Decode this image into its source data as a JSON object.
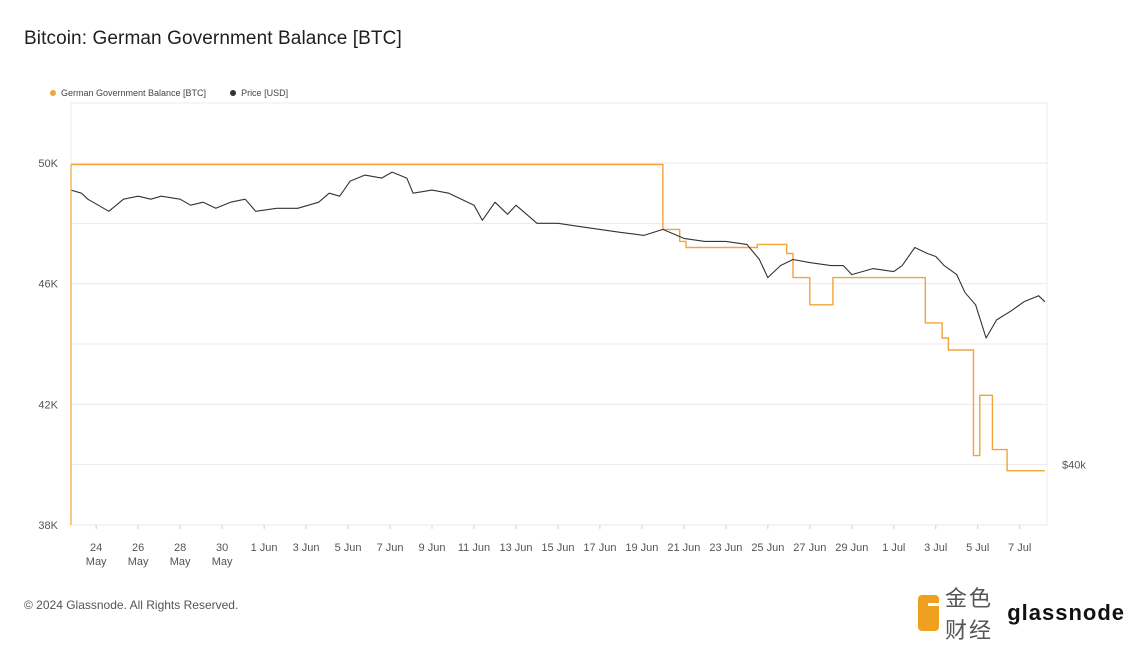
{
  "page": {
    "title": "Bitcoin: German Government Balance [BTC]",
    "copyright": "© 2024 Glassnode. All Rights Reserved.",
    "brand_wordmark": "glassnode",
    "watermark_text": "金色财经"
  },
  "chart_data": {
    "type": "line",
    "title": "Bitcoin: German Government Balance [BTC]",
    "legend": [
      {
        "name": "German Government Balance [BTC]",
        "color": "#f2a33a"
      },
      {
        "name": "Price [USD]",
        "color": "#333333"
      }
    ],
    "legend_placement": "top-left",
    "grid": true,
    "y_left": {
      "ticks": [
        {
          "value": 38000,
          "label": "38K"
        },
        {
          "value": 42000,
          "label": "42K"
        },
        {
          "value": 46000,
          "label": "46K"
        },
        {
          "value": 50000,
          "label": "50K"
        }
      ],
      "range": [
        38000,
        50000
      ]
    },
    "y_right": {
      "ticks": [
        {
          "value": 40000,
          "label": "$40k"
        }
      ]
    },
    "x": {
      "range_day_index": [
        0,
        46.5
      ],
      "ticks": [
        {
          "day": 1.2,
          "line1": "24",
          "line2": "May"
        },
        {
          "day": 3.2,
          "line1": "26",
          "line2": "May"
        },
        {
          "day": 5.2,
          "line1": "28",
          "line2": "May"
        },
        {
          "day": 7.2,
          "line1": "30",
          "line2": "May"
        },
        {
          "day": 9.2,
          "line1": "1 Jun",
          "line2": ""
        },
        {
          "day": 11.2,
          "line1": "3 Jun",
          "line2": ""
        },
        {
          "day": 13.2,
          "line1": "5 Jun",
          "line2": ""
        },
        {
          "day": 15.2,
          "line1": "7 Jun",
          "line2": ""
        },
        {
          "day": 17.2,
          "line1": "9 Jun",
          "line2": ""
        },
        {
          "day": 19.2,
          "line1": "11 Jun",
          "line2": ""
        },
        {
          "day": 21.2,
          "line1": "13 Jun",
          "line2": ""
        },
        {
          "day": 23.2,
          "line1": "15 Jun",
          "line2": ""
        },
        {
          "day": 25.2,
          "line1": "17 Jun",
          "line2": ""
        },
        {
          "day": 27.2,
          "line1": "19 Jun",
          "line2": ""
        },
        {
          "day": 29.2,
          "line1": "21 Jun",
          "line2": ""
        },
        {
          "day": 31.2,
          "line1": "23 Jun",
          "line2": ""
        },
        {
          "day": 33.2,
          "line1": "25 Jun",
          "line2": ""
        },
        {
          "day": 35.2,
          "line1": "27 Jun",
          "line2": ""
        },
        {
          "day": 37.2,
          "line1": "29 Jun",
          "line2": ""
        },
        {
          "day": 39.2,
          "line1": "1 Jul",
          "line2": ""
        },
        {
          "day": 41.2,
          "line1": "3 Jul",
          "line2": ""
        },
        {
          "day": 43.2,
          "line1": "5 Jul",
          "line2": ""
        },
        {
          "day": 45.2,
          "line1": "7 Jul",
          "line2": ""
        }
      ]
    },
    "series": [
      {
        "name": "German Government Balance [BTC]",
        "color": "#f2a33a",
        "shape": "step",
        "points": [
          [
            0.0,
            49950
          ],
          [
            28.2,
            49950
          ],
          [
            28.2,
            47800
          ],
          [
            29.0,
            47800
          ],
          [
            29.0,
            47400
          ],
          [
            29.3,
            47400
          ],
          [
            29.3,
            47200
          ],
          [
            32.7,
            47200
          ],
          [
            32.7,
            47300
          ],
          [
            34.1,
            47300
          ],
          [
            34.1,
            47000
          ],
          [
            34.4,
            47000
          ],
          [
            34.4,
            46200
          ],
          [
            35.2,
            46200
          ],
          [
            35.2,
            45300
          ],
          [
            36.3,
            45300
          ],
          [
            36.3,
            46200
          ],
          [
            40.7,
            46200
          ],
          [
            40.7,
            44700
          ],
          [
            41.5,
            44700
          ],
          [
            41.5,
            44200
          ],
          [
            41.8,
            44200
          ],
          [
            41.8,
            43800
          ],
          [
            43.0,
            43800
          ],
          [
            43.0,
            40300
          ],
          [
            43.3,
            40300
          ],
          [
            43.3,
            42300
          ],
          [
            43.9,
            42300
          ],
          [
            43.9,
            40500
          ],
          [
            44.6,
            40500
          ],
          [
            44.6,
            39800
          ],
          [
            46.4,
            39800
          ]
        ]
      },
      {
        "name": "Price [USD]",
        "color": "#333333",
        "shape": "line",
        "points": [
          [
            0.0,
            49100
          ],
          [
            0.5,
            49000
          ],
          [
            0.8,
            48800
          ],
          [
            1.3,
            48600
          ],
          [
            1.8,
            48400
          ],
          [
            2.5,
            48800
          ],
          [
            3.2,
            48900
          ],
          [
            3.8,
            48800
          ],
          [
            4.3,
            48900
          ],
          [
            5.2,
            48800
          ],
          [
            5.7,
            48600
          ],
          [
            6.3,
            48700
          ],
          [
            6.9,
            48500
          ],
          [
            7.6,
            48700
          ],
          [
            8.3,
            48800
          ],
          [
            8.8,
            48400
          ],
          [
            9.8,
            48500
          ],
          [
            10.8,
            48500
          ],
          [
            11.8,
            48700
          ],
          [
            12.3,
            49000
          ],
          [
            12.8,
            48900
          ],
          [
            13.3,
            49400
          ],
          [
            14.0,
            49600
          ],
          [
            14.8,
            49500
          ],
          [
            15.3,
            49700
          ],
          [
            16.0,
            49500
          ],
          [
            16.3,
            49000
          ],
          [
            17.2,
            49100
          ],
          [
            18.0,
            49000
          ],
          [
            19.2,
            48600
          ],
          [
            19.6,
            48100
          ],
          [
            20.2,
            48700
          ],
          [
            20.8,
            48300
          ],
          [
            21.2,
            48600
          ],
          [
            22.2,
            48000
          ],
          [
            23.2,
            48000
          ],
          [
            24.2,
            47900
          ],
          [
            25.2,
            47800
          ],
          [
            26.2,
            47700
          ],
          [
            27.3,
            47600
          ],
          [
            28.2,
            47800
          ],
          [
            29.2,
            47500
          ],
          [
            30.2,
            47400
          ],
          [
            31.2,
            47400
          ],
          [
            32.2,
            47300
          ],
          [
            32.8,
            46800
          ],
          [
            33.2,
            46200
          ],
          [
            33.8,
            46600
          ],
          [
            34.4,
            46800
          ],
          [
            35.2,
            46700
          ],
          [
            36.2,
            46600
          ],
          [
            36.8,
            46600
          ],
          [
            37.2,
            46300
          ],
          [
            38.2,
            46500
          ],
          [
            39.2,
            46400
          ],
          [
            39.6,
            46600
          ],
          [
            40.2,
            47200
          ],
          [
            40.8,
            47000
          ],
          [
            41.2,
            46900
          ],
          [
            41.6,
            46600
          ],
          [
            42.2,
            46300
          ],
          [
            42.6,
            45700
          ],
          [
            43.1,
            45300
          ],
          [
            43.6,
            44200
          ],
          [
            44.1,
            44800
          ],
          [
            44.8,
            45100
          ],
          [
            45.4,
            45400
          ],
          [
            46.1,
            45600
          ],
          [
            46.4,
            45400
          ]
        ]
      }
    ]
  }
}
